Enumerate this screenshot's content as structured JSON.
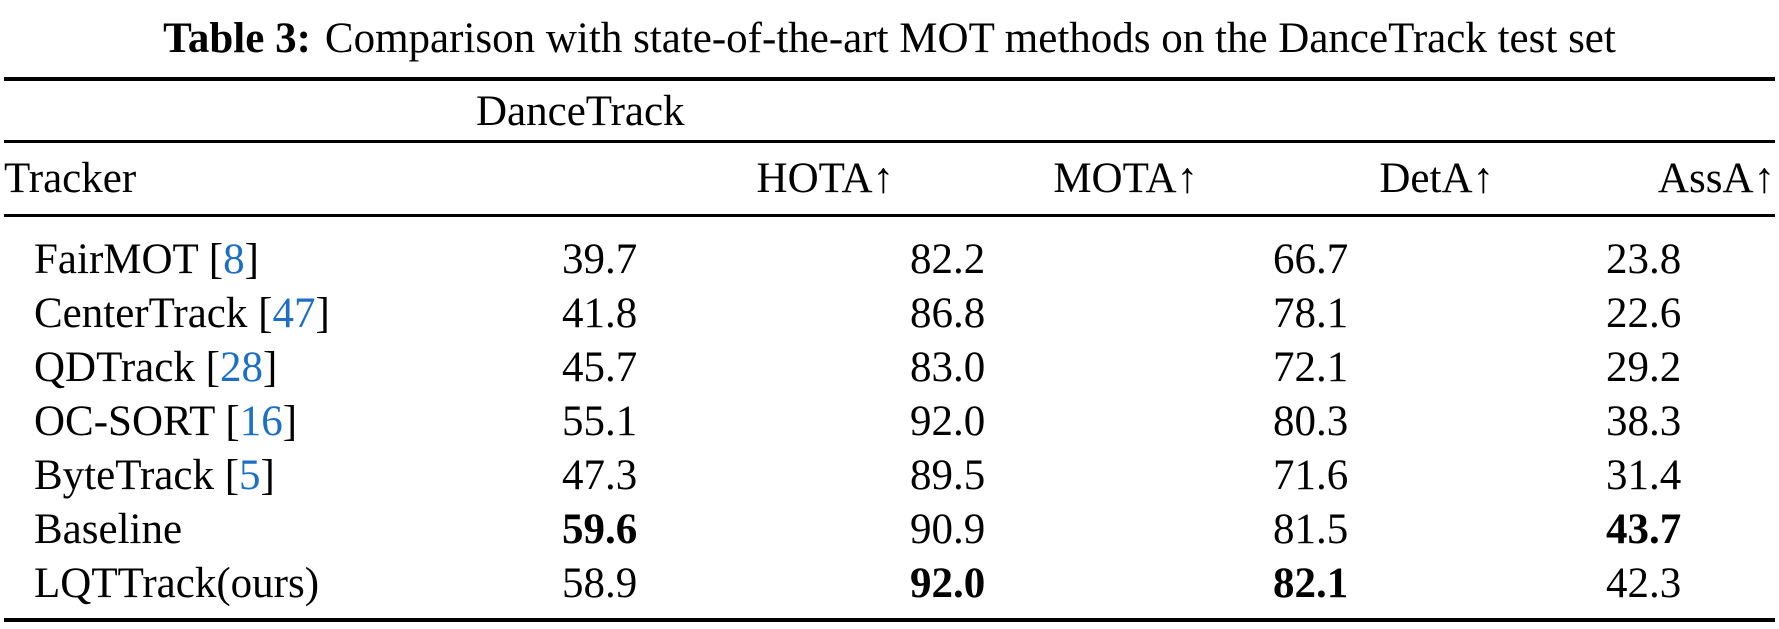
{
  "title": {
    "label": "Table 3:",
    "text": "Comparison with state-of-the-art MOT methods on the DanceTrack test set"
  },
  "table": {
    "group_header": "DanceTrack",
    "columns": [
      {
        "label": "Tracker"
      },
      {
        "label": "HOTA↑"
      },
      {
        "label": "MOTA↑"
      },
      {
        "label": "DetA↑"
      },
      {
        "label": "AssA↑"
      }
    ],
    "rows": [
      {
        "tracker": "FairMOT",
        "ref": "8",
        "hota": "39.7",
        "mota": "82.2",
        "deta": "66.7",
        "assa": "23.8",
        "bold": []
      },
      {
        "tracker": "CenterTrack",
        "ref": "47",
        "hota": "41.8",
        "mota": "86.8",
        "deta": "78.1",
        "assa": "22.6",
        "bold": []
      },
      {
        "tracker": "QDTrack",
        "ref": "28",
        "hota": "45.7",
        "mota": "83.0",
        "deta": "72.1",
        "assa": "29.2",
        "bold": []
      },
      {
        "tracker": "OC-SORT",
        "ref": "16",
        "hota": "55.1",
        "mota": "92.0",
        "deta": "80.3",
        "assa": "38.3",
        "bold": []
      },
      {
        "tracker": "ByteTrack",
        "ref": "5",
        "hota": "47.3",
        "mota": "89.5",
        "deta": "71.6",
        "assa": "31.4",
        "bold": []
      },
      {
        "tracker": "Baseline",
        "ref": null,
        "hota": "59.6",
        "mota": "90.9",
        "deta": "81.5",
        "assa": "43.7",
        "bold": [
          "hota",
          "assa"
        ]
      },
      {
        "tracker": "LQTTrack(ours)",
        "ref": null,
        "hota": "58.9",
        "mota": "92.0",
        "deta": "82.1",
        "assa": "42.3",
        "bold": [
          "mota",
          "deta"
        ]
      }
    ]
  },
  "colors": {
    "citation_blue": "#1b6fc4",
    "text": "#000000",
    "background": "#ffffff"
  }
}
